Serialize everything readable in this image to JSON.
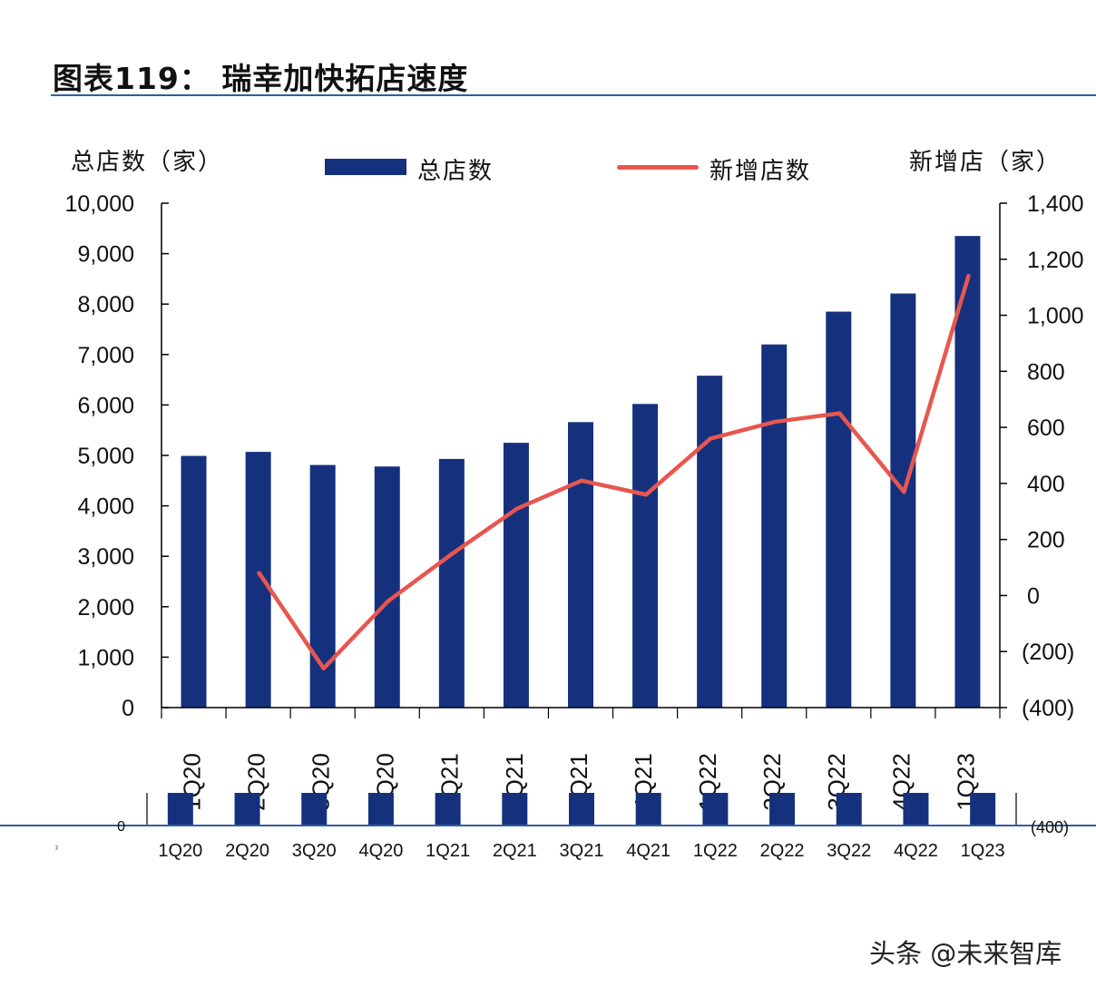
{
  "title": "图表119： 瑞幸加快拓店速度",
  "watermark": "头条 @未来智库",
  "colors": {
    "bar": "#15317e",
    "line": "#e8564f",
    "rule": "#2f5f9e"
  },
  "legend": {
    "bar_label": "总店数",
    "line_label": "新增店数"
  },
  "axis_titles": {
    "left": "总店数（家）",
    "right": "新增店（家）"
  },
  "chart_data": {
    "type": "bar",
    "categories": [
      "1Q20",
      "2Q20",
      "3Q20",
      "4Q20",
      "1Q21",
      "2Q21",
      "3Q21",
      "4Q21",
      "1Q22",
      "2Q22",
      "3Q22",
      "4Q22",
      "1Q23"
    ],
    "series": [
      {
        "name": "总店数",
        "type": "bar",
        "axis": "left",
        "values": [
          4990,
          5070,
          4810,
          4780,
          4930,
          5250,
          5660,
          6020,
          6580,
          7200,
          7850,
          8210,
          9350
        ]
      },
      {
        "name": "新增店数",
        "type": "line",
        "axis": "right",
        "values": [
          null,
          80,
          -260,
          -20,
          150,
          310,
          410,
          360,
          560,
          620,
          650,
          370,
          1140
        ]
      }
    ],
    "y_left": {
      "ylim": [
        0,
        10000
      ],
      "ticks": [
        "0",
        "1,000",
        "2,000",
        "3,000",
        "4,000",
        "5,000",
        "6,000",
        "7,000",
        "8,000",
        "9,000",
        "10,000"
      ]
    },
    "y_right": {
      "ylim": [
        -400,
        1400
      ],
      "ticks": [
        "(400)",
        "(200)",
        "0",
        "200",
        "400",
        "600",
        "800",
        "1,000",
        "1,200",
        "1,400"
      ]
    },
    "grid": false,
    "legend_position": "top"
  },
  "duplicate_strip": {
    "left_label": "0",
    "right_label": "(400)",
    "categories": [
      "1Q20",
      "2Q20",
      "3Q20",
      "4Q20",
      "1Q21",
      "2Q21",
      "3Q21",
      "4Q21",
      "1Q22",
      "2Q22",
      "3Q22",
      "4Q22",
      "1Q23"
    ]
  }
}
